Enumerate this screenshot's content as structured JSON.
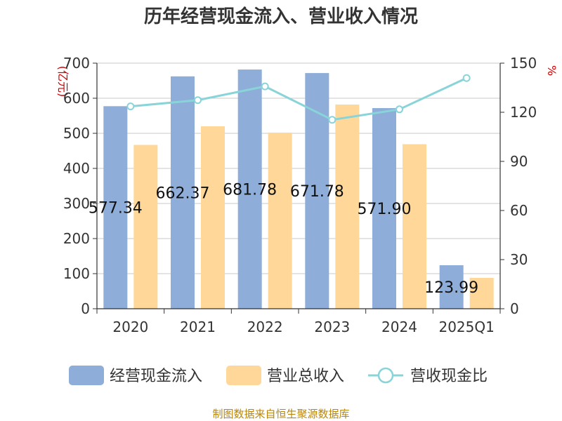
{
  "chart_data": {
    "type": "bar",
    "title": "历年经营现金流入、营业收入情况",
    "categories": [
      "2020",
      "2021",
      "2022",
      "2023",
      "2024",
      "2025Q1"
    ],
    "series": [
      {
        "name": "经营现金流入",
        "type": "bar",
        "axis": "left",
        "color": "#8eadd9",
        "values": [
          577.34,
          662.37,
          681.78,
          671.78,
          571.9,
          123.99
        ],
        "labels": [
          "577.34",
          "662.37",
          "681.78",
          "671.78",
          "571.90",
          "123.99"
        ]
      },
      {
        "name": "营业总收入",
        "type": "bar",
        "axis": "left",
        "color": "#ffd899",
        "values": [
          467,
          520,
          502,
          582,
          469,
          88
        ]
      },
      {
        "name": "营收现金比",
        "type": "line",
        "axis": "right",
        "color": "#88d4d8",
        "values": [
          123.6,
          127.4,
          135.8,
          115.4,
          121.8,
          140.9
        ]
      }
    ],
    "left_axis": {
      "unit": "(亿元)",
      "ylim": [
        0,
        700
      ],
      "ticks": [
        "0",
        "100",
        "200",
        "300",
        "400",
        "500",
        "600",
        "700"
      ]
    },
    "right_axis": {
      "unit": "%",
      "ylim": [
        0,
        150
      ],
      "ticks": [
        "0",
        "30",
        "60",
        "90",
        "120",
        "150"
      ]
    },
    "grid": true,
    "legend_position": "bottom",
    "source": "制图数据来自恒生聚源数据库"
  }
}
